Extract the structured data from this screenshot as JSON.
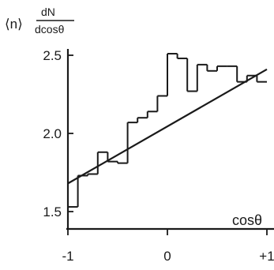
{
  "chart_data": {
    "type": "line",
    "title": "",
    "ylabel": {
      "prefix": "⟨n⟩",
      "numerator": "dN",
      "denominator": "dcosθ"
    },
    "xlabel": "cosθ",
    "xlim": [
      -1,
      1
    ],
    "ylim": [
      1.5,
      2.5
    ],
    "x_ticks": [
      {
        "value": -1,
        "label": "-1"
      },
      {
        "value": 0,
        "label": "0"
      },
      {
        "value": 1,
        "label": "+1"
      }
    ],
    "y_ticks": [
      {
        "value": 1.5,
        "label": "1.5"
      },
      {
        "value": 2.0,
        "label": "2.0"
      },
      {
        "value": 2.5,
        "label": "2.5"
      }
    ],
    "series": [
      {
        "kind": "histogram",
        "bin_edges": [
          -1.0,
          -0.9,
          -0.8,
          -0.7,
          -0.6,
          -0.5,
          -0.4,
          -0.3,
          -0.2,
          -0.1,
          0.0,
          0.1,
          0.2,
          0.3,
          0.4,
          0.5,
          0.6,
          0.7,
          0.8,
          0.9,
          1.0
        ],
        "values": [
          1.53,
          1.73,
          1.74,
          1.88,
          1.82,
          1.81,
          2.07,
          2.1,
          2.14,
          2.24,
          2.51,
          2.48,
          2.27,
          2.44,
          2.4,
          2.43,
          2.43,
          2.33,
          2.37,
          2.33
        ]
      },
      {
        "kind": "fit-line",
        "x": [
          -1.0,
          1.0
        ],
        "y": [
          1.68,
          2.41
        ]
      }
    ]
  }
}
